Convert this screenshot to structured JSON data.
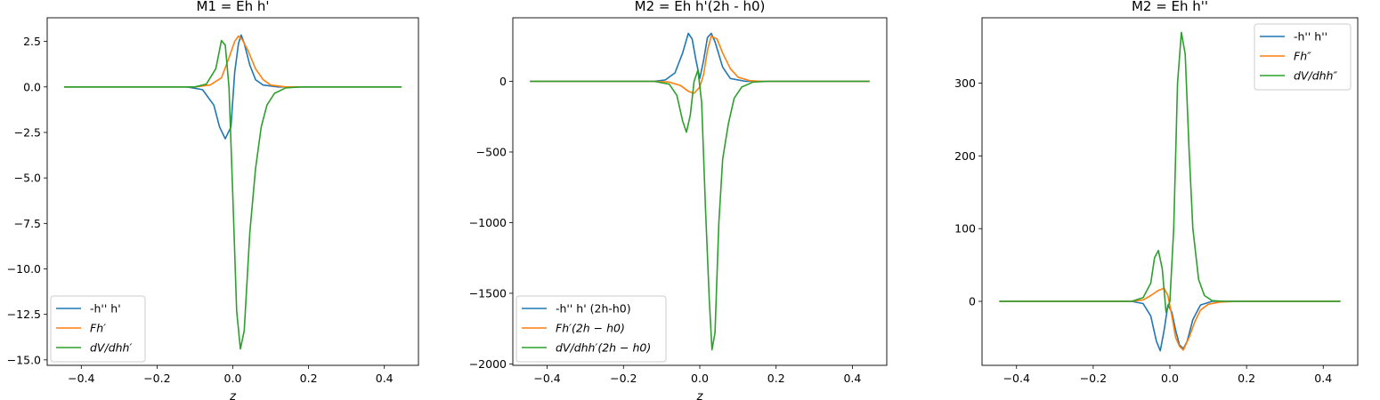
{
  "colors": {
    "blue": "#1f77b4",
    "orange": "#ff7f0e",
    "green": "#2ca02c"
  },
  "chart_data": [
    {
      "type": "line",
      "title": "M1 = Eh h'",
      "xlabel": "z",
      "ylabel": "",
      "xlim": [
        -0.49,
        0.49
      ],
      "ylim": [
        -15.3,
        3.8
      ],
      "xticks": [
        "-0.4",
        "-0.2",
        "0.0",
        "0.2",
        "0.4"
      ],
      "xtick_values": [
        -0.4,
        -0.2,
        0.0,
        0.2,
        0.4
      ],
      "yticks": [
        "2.5",
        "0.0",
        "−2.5",
        "−5.0",
        "−7.5",
        "−10.0",
        "−12.5",
        "−15.0"
      ],
      "ytick_values": [
        2.5,
        0.0,
        -2.5,
        -5.0,
        -7.5,
        -10.0,
        -12.5,
        -15.0
      ],
      "legend_position": "lower-left",
      "grid": false,
      "series": [
        {
          "name": "-h'' h'",
          "color": "#1f77b4",
          "x": [
            -0.445,
            -0.12,
            -0.08,
            -0.05,
            -0.035,
            -0.02,
            -0.005,
            0.005,
            0.015,
            0.022,
            0.03,
            0.045,
            0.06,
            0.08,
            0.12,
            0.445
          ],
          "y": [
            0,
            0,
            -0.15,
            -1.0,
            -2.2,
            -2.85,
            -2.2,
            0.8,
            2.4,
            2.85,
            2.4,
            1.2,
            0.4,
            0.1,
            0,
            0
          ]
        },
        {
          "name": "Fh′",
          "color": "#ff7f0e",
          "x": [
            -0.445,
            -0.1,
            -0.06,
            -0.03,
            -0.01,
            0.005,
            0.015,
            0.025,
            0.04,
            0.06,
            0.08,
            0.1,
            0.14,
            0.445
          ],
          "y": [
            0,
            0,
            0.1,
            0.5,
            1.6,
            2.5,
            2.8,
            2.6,
            2.0,
            1.0,
            0.4,
            0.1,
            0,
            0
          ]
        },
        {
          "name": "dV/dhh′",
          "color": "#2ca02c",
          "x": [
            -0.445,
            -0.1,
            -0.07,
            -0.045,
            -0.03,
            -0.02,
            -0.01,
            0.0,
            0.01,
            0.02,
            0.03,
            0.045,
            0.06,
            0.075,
            0.09,
            0.11,
            0.14,
            0.18,
            0.445
          ],
          "y": [
            0,
            0,
            0.15,
            1.0,
            2.55,
            2.3,
            0.0,
            -6.0,
            -12.3,
            -14.4,
            -13.4,
            -8.0,
            -4.5,
            -2.2,
            -1.0,
            -0.35,
            -0.05,
            0,
            0
          ]
        }
      ]
    },
    {
      "type": "line",
      "title": "M2 = Eh h'(2h - h0)",
      "xlabel": "z",
      "ylabel": "",
      "xlim": [
        -0.49,
        0.49
      ],
      "ylim": [
        -2010,
        450
      ],
      "xticks": [
        "-0.4",
        "-0.2",
        "0.0",
        "0.2",
        "0.4"
      ],
      "xtick_values": [
        -0.4,
        -0.2,
        0.0,
        0.2,
        0.4
      ],
      "yticks": [
        "0",
        "−500",
        "−1000",
        "−1500",
        "−2000"
      ],
      "ytick_values": [
        0,
        -500,
        -1000,
        -1500,
        -2000
      ],
      "legend_position": "lower-left",
      "grid": false,
      "series": [
        {
          "name": "-h'' h' (2h-h0)",
          "color": "#1f77b4",
          "x": [
            -0.445,
            -0.12,
            -0.09,
            -0.065,
            -0.045,
            -0.03,
            -0.02,
            -0.01,
            0.0,
            0.01,
            0.02,
            0.03,
            0.04,
            0.06,
            0.08,
            0.12,
            0.445
          ],
          "y": [
            0,
            0,
            10,
            60,
            200,
            340,
            300,
            150,
            20,
            150,
            310,
            340,
            280,
            100,
            20,
            0,
            0
          ]
        },
        {
          "name": "Fh′(2h − h0)",
          "color": "#ff7f0e",
          "x": [
            -0.445,
            -0.12,
            -0.08,
            -0.05,
            -0.03,
            -0.015,
            0.0,
            0.01,
            0.02,
            0.03,
            0.045,
            0.06,
            0.08,
            0.1,
            0.13,
            0.16,
            0.445
          ],
          "y": [
            0,
            0,
            -5,
            -30,
            -70,
            -85,
            -40,
            50,
            220,
            320,
            300,
            200,
            90,
            30,
            5,
            0,
            0
          ]
        },
        {
          "name": "dV/dhh′(2h − h0)",
          "color": "#2ca02c",
          "x": [
            -0.445,
            -0.12,
            -0.08,
            -0.06,
            -0.045,
            -0.035,
            -0.025,
            -0.015,
            -0.005,
            0.005,
            0.015,
            0.025,
            0.032,
            0.04,
            0.05,
            0.06,
            0.075,
            0.09,
            0.11,
            0.14,
            0.18,
            0.445
          ],
          "y": [
            0,
            0,
            -20,
            -100,
            -280,
            -360,
            -240,
            0,
            80,
            -150,
            -900,
            -1550,
            -1900,
            -1780,
            -1000,
            -550,
            -300,
            -120,
            -40,
            -5,
            0,
            0
          ]
        }
      ]
    },
    {
      "type": "line",
      "title": "M2 = Eh h''",
      "xlabel": "",
      "ylabel": "",
      "xlim": [
        -0.49,
        0.49
      ],
      "ylim": [
        -88,
        390
      ],
      "xticks": [
        "-0.4",
        "-0.2",
        "0.0",
        "0.2",
        "0.4"
      ],
      "xtick_values": [
        -0.4,
        -0.2,
        0.0,
        0.2,
        0.4
      ],
      "yticks": [
        "300",
        "200",
        "100",
        "0"
      ],
      "ytick_values": [
        300,
        200,
        100,
        0
      ],
      "legend_position": "upper-right",
      "grid": false,
      "series": [
        {
          "name": "-h'' h''",
          "color": "#1f77b4",
          "x": [
            -0.445,
            -0.1,
            -0.07,
            -0.05,
            -0.035,
            -0.025,
            -0.015,
            -0.005,
            0.005,
            0.015,
            0.025,
            0.035,
            0.045,
            0.06,
            0.08,
            0.11,
            0.445
          ],
          "y": [
            0,
            0,
            -3,
            -20,
            -55,
            -68,
            -40,
            -5,
            -15,
            -40,
            -60,
            -65,
            -55,
            -25,
            -5,
            0,
            0
          ]
        },
        {
          "name": "Fh″",
          "color": "#ff7f0e",
          "x": [
            -0.445,
            -0.1,
            -0.07,
            -0.05,
            -0.03,
            -0.015,
            -0.005,
            0.005,
            0.015,
            0.025,
            0.035,
            0.05,
            0.065,
            0.08,
            0.1,
            0.13,
            0.18,
            0.445
          ],
          "y": [
            0,
            0,
            2,
            8,
            15,
            18,
            8,
            -20,
            -50,
            -62,
            -67,
            -50,
            -28,
            -12,
            -4,
            -1,
            0,
            0
          ]
        },
        {
          "name": "dV/dhh″",
          "color": "#2ca02c",
          "x": [
            -0.445,
            -0.1,
            -0.07,
            -0.05,
            -0.04,
            -0.03,
            -0.02,
            -0.01,
            0.0,
            0.01,
            0.02,
            0.03,
            0.04,
            0.05,
            0.06,
            0.075,
            0.09,
            0.11,
            0.14,
            0.445
          ],
          "y": [
            0,
            0,
            5,
            25,
            60,
            70,
            45,
            -15,
            0,
            100,
            300,
            370,
            340,
            210,
            100,
            30,
            8,
            1,
            0,
            0
          ]
        }
      ]
    }
  ]
}
